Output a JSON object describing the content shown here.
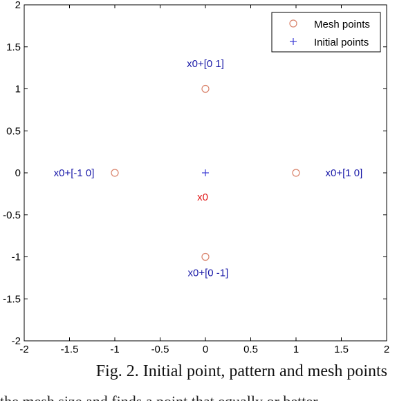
{
  "chart_data": {
    "type": "scatter",
    "xlim": [
      -2,
      2
    ],
    "ylim": [
      -2,
      2
    ],
    "xticks": [
      "-2",
      "-1.5",
      "-1",
      "-0.5",
      "0",
      "0.5",
      "1",
      "1.5",
      "2"
    ],
    "yticks": [
      "2",
      "1.5",
      "1",
      "0.5",
      "0",
      "-0.5",
      "-1",
      "-1.5",
      "-2"
    ],
    "xtick_values": [
      -2,
      -1.5,
      -1,
      -0.5,
      0,
      0.5,
      1,
      1.5,
      2
    ],
    "ytick_values": [
      2,
      1.5,
      1,
      0.5,
      0,
      -0.5,
      -1,
      -1.5,
      -2
    ],
    "grid": false,
    "legend_position": "top-right",
    "series": [
      {
        "name": "Mesh points",
        "marker": "circle",
        "color": "#d9826a",
        "points": [
          [
            0,
            1
          ],
          [
            -1,
            0
          ],
          [
            1,
            0
          ],
          [
            0,
            -1
          ]
        ]
      },
      {
        "name": "Initial points",
        "marker": "plus",
        "color": "#3b3bd6",
        "points": [
          [
            0,
            0
          ]
        ]
      }
    ],
    "annotations": [
      {
        "text": "x0+[0 1]",
        "x": 0,
        "y": 1.3,
        "color": "#1a1aa8"
      },
      {
        "text": "x0+[-1 0]",
        "x": -1.45,
        "y": 0,
        "color": "#1a1aa8"
      },
      {
        "text": "x0+[1 0]",
        "x": 1.53,
        "y": 0,
        "color": "#1a1aa8"
      },
      {
        "text": "x0",
        "x": -0.03,
        "y": -0.29,
        "color": "#e01515"
      },
      {
        "text": "x0+[0 -1]",
        "x": 0.03,
        "y": -1.19,
        "color": "#1a1aa8"
      }
    ]
  },
  "caption": "Fig. 2. Initial point, pattern and mesh points",
  "next_text_line": "the mesh size and finds a point that equally or better"
}
